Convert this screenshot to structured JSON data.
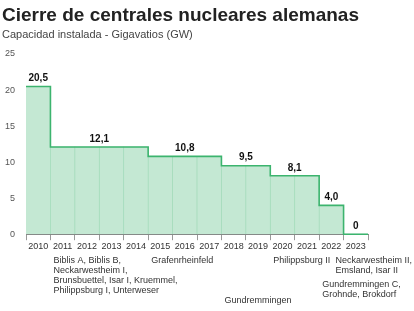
{
  "chart_data": {
    "type": "step",
    "title": "Cierre de centrales nucleares alemanas",
    "subtitle": "Capacidad instalada - Gigavatios (GW)",
    "categories": [
      "2010",
      "2011",
      "2012",
      "2013",
      "2014",
      "2015",
      "2016",
      "2017",
      "2018",
      "2019",
      "2020",
      "2021",
      "2022",
      "2023"
    ],
    "values": [
      20.5,
      12.1,
      12.1,
      12.1,
      12.1,
      10.8,
      10.8,
      10.8,
      9.5,
      9.5,
      8.1,
      8.1,
      4.0,
      0
    ],
    "value_labels": [
      "20,5",
      "12,1",
      null,
      null,
      null,
      "10,8",
      null,
      null,
      "9,5",
      null,
      "8,1",
      null,
      "4,0",
      "0"
    ],
    "data_labels": true,
    "color": "#3cb46e",
    "ylim": [
      0,
      25
    ],
    "yticks": [
      0,
      5,
      10,
      15,
      20,
      25
    ],
    "grid": false,
    "annotations": [
      {
        "x": "2011",
        "text": [
          "Biblis A, Biblis B,",
          "Neckarwestheim I,",
          "Brunsbuettel, Isar I, Kruemmel,",
          "Philippsburg I, Unterweser"
        ]
      },
      {
        "x": "2015",
        "text": [
          "Grafenrheinfeld"
        ]
      },
      {
        "x": "2018",
        "text": [
          "Gundremmingen"
        ]
      },
      {
        "x": "2020",
        "text": [
          "Philippsburg II"
        ]
      },
      {
        "x": "2022",
        "text": [
          "Gundremmingen C,",
          "Grohnde, Brokdorf"
        ]
      },
      {
        "x": "2023",
        "text": [
          "Neckarwestheim II,",
          "Emsland, Isar II"
        ]
      }
    ]
  }
}
